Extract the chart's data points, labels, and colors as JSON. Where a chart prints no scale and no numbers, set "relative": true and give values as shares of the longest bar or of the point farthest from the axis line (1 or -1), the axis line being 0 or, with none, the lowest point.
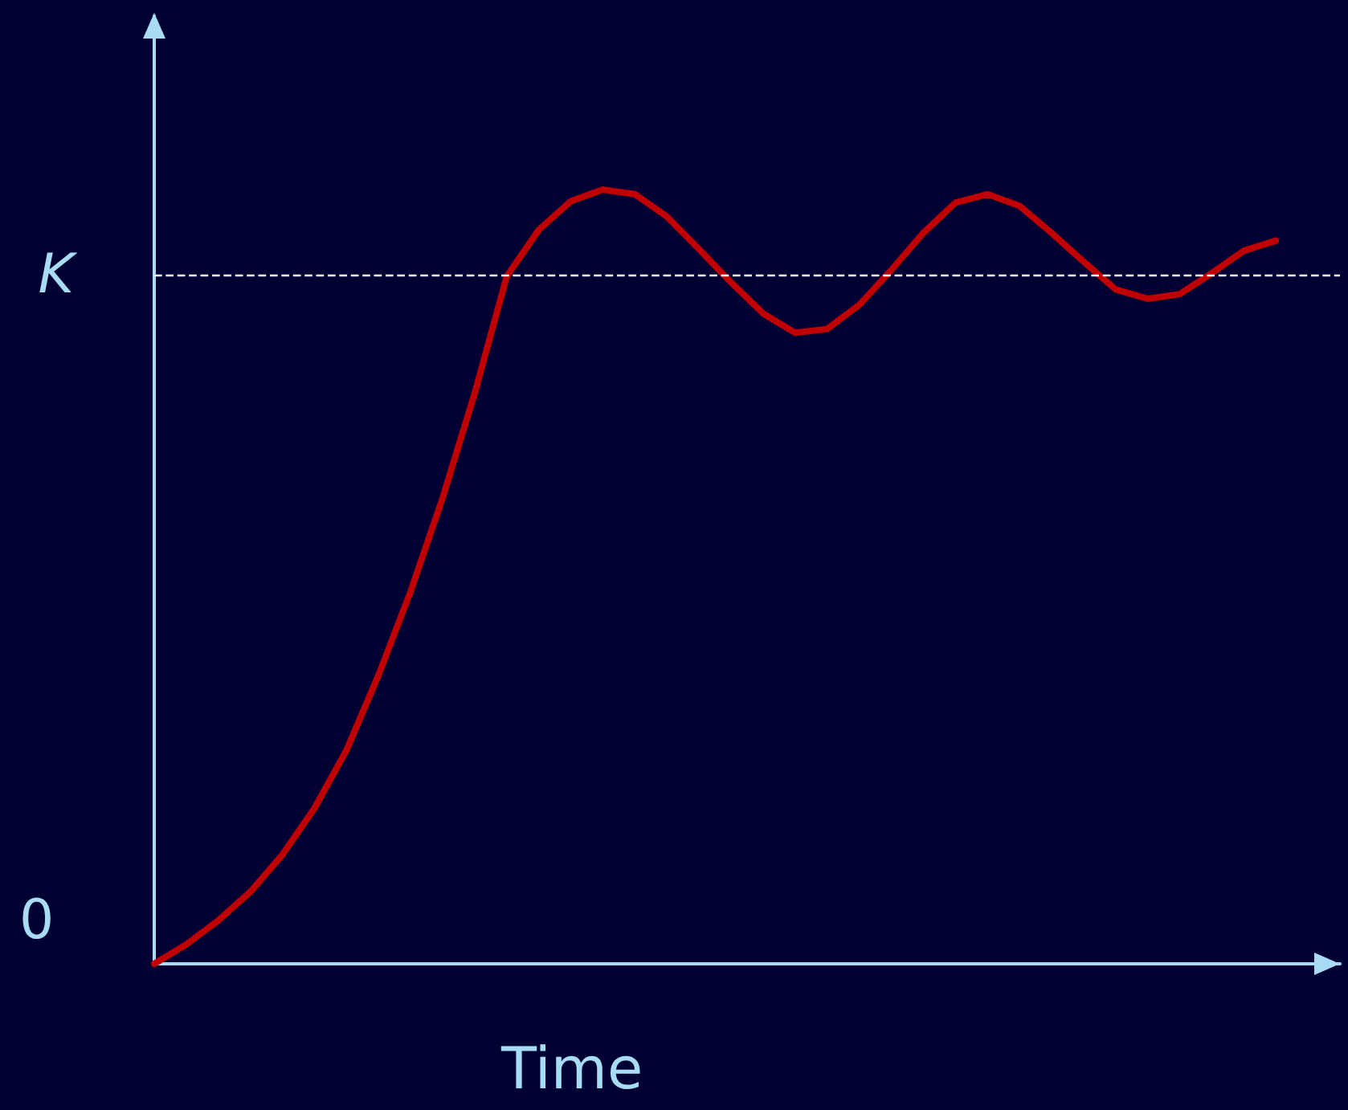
{
  "chart_data": {
    "type": "line",
    "relative": true,
    "xlabel": "Time",
    "categories": [
      null,
      null,
      null,
      null,
      null,
      null,
      null,
      null,
      null,
      null,
      null,
      null,
      null,
      null,
      null,
      null,
      null,
      null,
      null,
      null,
      null,
      null,
      null,
      null,
      null,
      null,
      null,
      null,
      null,
      null,
      null,
      null,
      null,
      null,
      null,
      null,
      null,
      null
    ],
    "series": [
      {
        "color": "#c00000",
        "values": [
          0,
          0.025,
          0.056,
          0.093,
          0.141,
          0.201,
          0.276,
          0.373,
          0.481,
          0.602,
          0.737,
          0.888,
          0.948,
          0.985,
          1,
          0.994,
          0.965,
          0.923,
          0.88,
          0.84,
          0.815,
          0.82,
          0.851,
          0.896,
          0.944,
          0.983,
          0.994,
          0.979,
          0.944,
          0.907,
          0.871,
          0.859,
          0.865,
          0.892,
          0.921,
          0.934,
          null,
          null
        ]
      }
    ],
    "ref_lines": [
      {
        "axis": "y",
        "value": 0.889,
        "label": "K",
        "color": "#ffffff",
        "line_style": "dashed"
      }
    ],
    "annotations": [
      "0"
    ],
    "marker": "none",
    "line_style": "solid"
  }
}
